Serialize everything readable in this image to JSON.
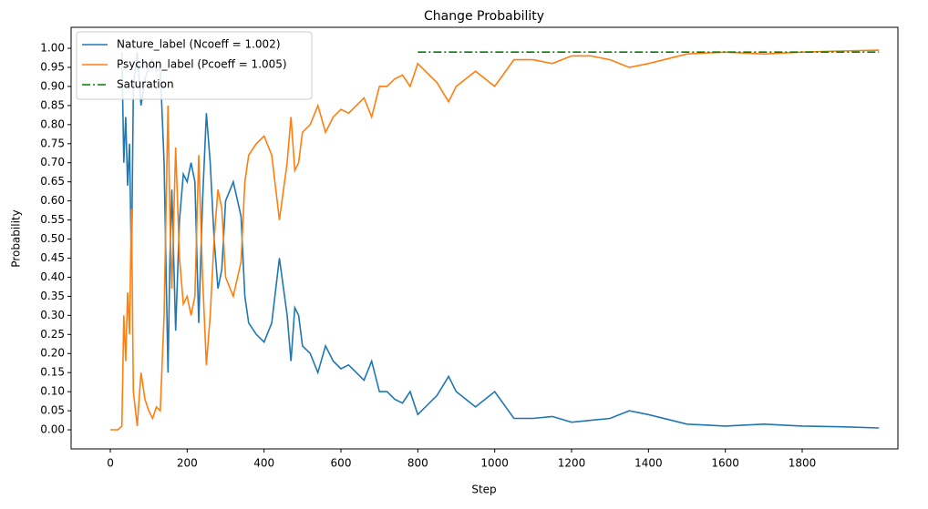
{
  "chart_data": {
    "type": "line",
    "title": "Change Probability",
    "xlabel": "Step",
    "ylabel": "Probability",
    "x": [
      0,
      10,
      20,
      30,
      35,
      40,
      45,
      50,
      55,
      60,
      70,
      80,
      90,
      100,
      110,
      120,
      130,
      140,
      150,
      155,
      160,
      170,
      180,
      190,
      200,
      210,
      220,
      230,
      240,
      250,
      260,
      270,
      280,
      290,
      300,
      320,
      340,
      350,
      360,
      380,
      400,
      420,
      440,
      460,
      470,
      480,
      490,
      500,
      520,
      540,
      560,
      580,
      600,
      620,
      640,
      660,
      680,
      700,
      720,
      740,
      760,
      780,
      800,
      850,
      880,
      900,
      950,
      1000,
      1050,
      1100,
      1150,
      1200,
      1250,
      1300,
      1350,
      1400,
      1500,
      1600,
      1700,
      1800,
      1900,
      2000
    ],
    "series": [
      {
        "name": "Nature_label (Ncoeff = 1.002)",
        "color": "#1f77b4",
        "dash": "solid",
        "values": [
          null,
          null,
          null,
          0.99,
          0.7,
          0.82,
          0.64,
          0.75,
          0.42,
          0.9,
          0.99,
          0.85,
          0.92,
          0.95,
          0.97,
          0.94,
          0.95,
          0.7,
          0.15,
          0.45,
          0.63,
          0.26,
          0.55,
          0.67,
          0.65,
          0.7,
          0.65,
          0.28,
          0.6,
          0.83,
          0.7,
          0.5,
          0.37,
          0.42,
          0.6,
          0.65,
          0.56,
          0.35,
          0.28,
          0.25,
          0.23,
          0.28,
          0.45,
          0.3,
          0.18,
          0.32,
          0.3,
          0.22,
          0.2,
          0.15,
          0.22,
          0.18,
          0.16,
          0.17,
          0.15,
          0.13,
          0.18,
          0.1,
          0.1,
          0.08,
          0.07,
          0.1,
          0.04,
          0.09,
          0.14,
          0.1,
          0.06,
          0.1,
          0.03,
          0.03,
          0.035,
          0.02,
          0.025,
          0.03,
          0.05,
          0.04,
          0.015,
          0.01,
          0.015,
          0.01,
          0.008,
          0.005
        ]
      },
      {
        "name": "Psychon_label (Pcoeff = 1.005)",
        "color": "#ff7f0e",
        "dash": "solid",
        "values": [
          0,
          0,
          0,
          0.01,
          0.3,
          0.18,
          0.36,
          0.25,
          0.58,
          0.1,
          0.01,
          0.15,
          0.08,
          0.05,
          0.03,
          0.06,
          0.05,
          0.3,
          0.85,
          0.55,
          0.37,
          0.74,
          0.45,
          0.33,
          0.35,
          0.3,
          0.35,
          0.72,
          0.4,
          0.17,
          0.3,
          0.5,
          0.63,
          0.58,
          0.4,
          0.35,
          0.44,
          0.65,
          0.72,
          0.75,
          0.77,
          0.72,
          0.55,
          0.7,
          0.82,
          0.68,
          0.7,
          0.78,
          0.8,
          0.85,
          0.78,
          0.82,
          0.84,
          0.83,
          0.85,
          0.87,
          0.82,
          0.9,
          0.9,
          0.92,
          0.93,
          0.9,
          0.96,
          0.91,
          0.86,
          0.9,
          0.94,
          0.9,
          0.97,
          0.97,
          0.96,
          0.98,
          0.98,
          0.97,
          0.95,
          0.96,
          0.985,
          0.99,
          0.985,
          0.99,
          0.993,
          0.995
        ]
      },
      {
        "name": "Saturation",
        "color": "#008000",
        "dash": "dashdot",
        "x": [
          800,
          2000
        ],
        "values": [
          0.99,
          0.99
        ]
      }
    ],
    "xlim": [
      -102,
      2049
    ],
    "xticks": [
      0,
      200,
      400,
      600,
      800,
      1000,
      1200,
      1400,
      1600,
      1800
    ],
    "ylim": [
      -0.05,
      1.055
    ],
    "yticks": [
      {
        "value": 0,
        "label": "0.00"
      },
      {
        "value": 0.05,
        "label": "0.05"
      },
      {
        "value": 0.1,
        "label": "0.10"
      },
      {
        "value": 0.15,
        "label": "0.15"
      },
      {
        "value": 0.2,
        "label": "0.20"
      },
      {
        "value": 0.25,
        "label": "0.25"
      },
      {
        "value": 0.3,
        "label": "0.30"
      },
      {
        "value": 0.35,
        "label": "0.35"
      },
      {
        "value": 0.4,
        "label": "0.40"
      },
      {
        "value": 0.45,
        "label": "0.45"
      },
      {
        "value": 0.5,
        "label": "0.50"
      },
      {
        "value": 0.55,
        "label": "0.55"
      },
      {
        "value": 0.6,
        "label": "0.60"
      },
      {
        "value": 0.65,
        "label": "0.65"
      },
      {
        "value": 0.7,
        "label": "0.70"
      },
      {
        "value": 0.75,
        "label": "0.75"
      },
      {
        "value": 0.8,
        "label": "0.80"
      },
      {
        "value": 0.85,
        "label": "0.85"
      },
      {
        "value": 0.9,
        "label": "0.90"
      },
      {
        "value": 0.95,
        "label": "0.95"
      },
      {
        "value": 1,
        "label": "1.00"
      }
    ],
    "legend": "upper-left"
  }
}
